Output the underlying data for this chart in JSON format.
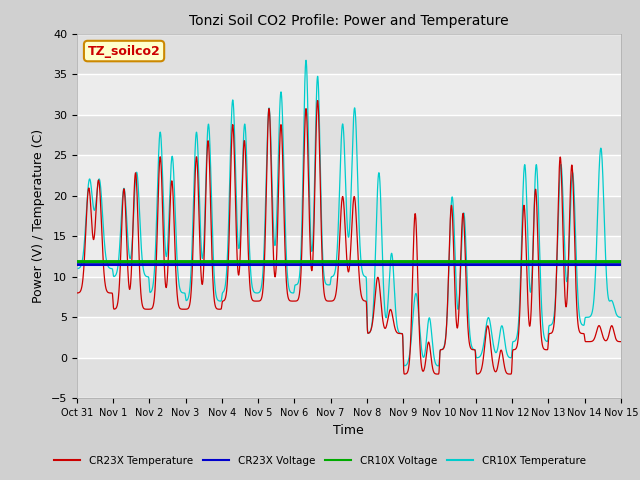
{
  "title": "Tonzi Soil CO2 Profile: Power and Temperature",
  "xlabel": "Time",
  "ylabel": "Power (V) / Temperature (C)",
  "ylim": [
    -5,
    40
  ],
  "yticks": [
    -5,
    0,
    5,
    10,
    15,
    20,
    25,
    30,
    35,
    40
  ],
  "xlim_start": 0,
  "xlim_end": 15,
  "xtick_labels": [
    "Oct 31",
    "Nov 1",
    "Nov 2",
    "Nov 3",
    "Nov 4",
    "Nov 5",
    "Nov 6",
    "Nov 7",
    "Nov 8",
    "Nov 9",
    "Nov 10",
    "Nov 11",
    "Nov 12",
    "Nov 13",
    "Nov 14",
    "Nov 15"
  ],
  "bg_color": "#e8e8e8",
  "plot_bg_color": "#e8e8e8",
  "cr23x_temp_color": "#cc0000",
  "cr23x_volt_color": "#0000cc",
  "cr10x_volt_color": "#00aa00",
  "cr10x_temp_color": "#00cccc",
  "cr23x_volt_value": 11.5,
  "cr10x_volt_value": 11.85,
  "watermark_text": "TZ_soilco2",
  "watermark_color": "#cc0000",
  "watermark_bg": "#ffffcc",
  "watermark_border": "#cc8800",
  "legend_entries": [
    "CR23X Temperature",
    "CR23X Voltage",
    "CR10X Voltage",
    "CR10X Temperature"
  ],
  "fig_bg": "#d0d0d0"
}
